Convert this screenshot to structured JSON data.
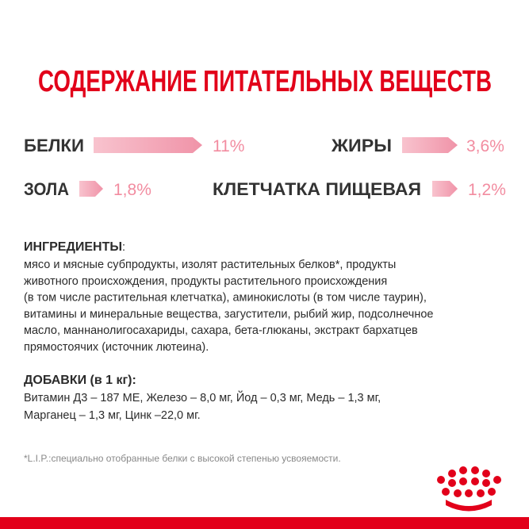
{
  "header": {
    "title": "СОДЕРЖАНИЕ ПИТАТЕЛЬНЫХ ВЕЩЕСТВ"
  },
  "nutrients": [
    {
      "name": "БЕЛКИ",
      "value": "11%"
    },
    {
      "name": "ЖИРЫ",
      "value": "3,6%"
    },
    {
      "name": "ЗОЛА",
      "value": "1,8%"
    },
    {
      "name": "КЛЕТЧАТКА ПИЩЕВАЯ",
      "value": "1,2%"
    }
  ],
  "ingredients": {
    "heading": "ИНГРЕДИЕНТЫ",
    "colon": ":",
    "lines": [
      "мясо и мясные субпродукты, изолят растительных белков*, продукты",
      "животного происхождения, продукты растительного происхождения",
      "(в том числе растительная клетчатка), аминокислоты (в том числе таурин),",
      "витамины и минеральные вещества, загустители, рыбий жир, подсолнечное",
      "масло, маннанолигосахариды, сахара, бета-глюканы, экстракт бархатцев",
      "прямостоячих (источник лютеина)."
    ]
  },
  "additives": {
    "heading": "ДОБАВКИ (в 1 кг):",
    "lines": [
      "Витамин Д3 – 187 МЕ, Железо – 8,0 мг, Йод – 0,3 мг, Медь – 1,3 мг,",
      "Марганец – 1,3 мг, Цинк –22,0 мг."
    ]
  },
  "footnote": "*L.I.P.:специально отобранные белки с высокой степенью усвояемости."
}
